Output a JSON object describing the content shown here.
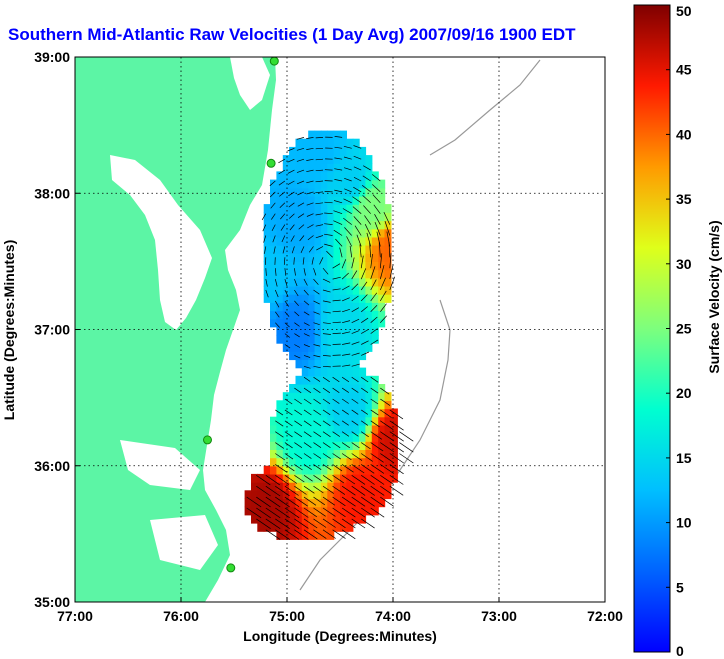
{
  "chart_data": {
    "type": "heatmap",
    "title": "Southern Mid-Atlantic Raw Velocities (1 Day Avg) 2007/09/16 1900 EDT",
    "xlabel": "Longitude (Degrees:Minutes)",
    "ylabel": "Latitude (Degrees:Minutes)",
    "colorbar_label": "Surface Velocity (cm/s)",
    "xlim": [
      -77,
      -72
    ],
    "ylim": [
      35,
      39
    ],
    "clim": [
      0,
      50
    ],
    "grid": "dotted",
    "x_ticks": [
      -77,
      -76,
      -75,
      -74,
      -73,
      -72
    ],
    "x_tick_labels": [
      "77:00",
      "76:00",
      "75:00",
      "74:00",
      "73:00",
      "72:00"
    ],
    "y_ticks": [
      35,
      36,
      37,
      38,
      39
    ],
    "y_tick_labels": [
      "35:00",
      "36:00",
      "37:00",
      "38:00",
      "39:00"
    ],
    "colorbar_ticks": [
      0,
      5,
      10,
      15,
      20,
      25,
      30,
      35,
      40,
      45,
      50
    ],
    "colorbar_tick_labels": [
      "0",
      "5",
      "10",
      "15",
      "20",
      "25",
      "30",
      "35",
      "40",
      "45",
      "50"
    ],
    "colors": {
      "land": "#5cf5a5",
      "water": "#ffffff",
      "station": "#33dd33",
      "arrow": "#000000"
    },
    "stations": [
      {
        "lon": -75.12,
        "lat": 38.97
      },
      {
        "lon": -75.15,
        "lat": 38.22
      },
      {
        "lon": -75.75,
        "lat": 36.19
      },
      {
        "lon": -75.53,
        "lat": 35.25
      }
    ],
    "velocity_field": [
      {
        "lon": -74.7,
        "lat": 38.3,
        "speed": 12
      },
      {
        "lon": -74.4,
        "lat": 38.1,
        "speed": 14
      },
      {
        "lon": -74.2,
        "lat": 37.9,
        "speed": 25
      },
      {
        "lon": -74.0,
        "lat": 37.6,
        "speed": 40
      },
      {
        "lon": -74.9,
        "lat": 37.8,
        "speed": 11
      },
      {
        "lon": -75.2,
        "lat": 37.4,
        "speed": 13
      },
      {
        "lon": -74.9,
        "lat": 37.0,
        "speed": 8
      },
      {
        "lon": -74.5,
        "lat": 37.0,
        "speed": 15
      },
      {
        "lon": -74.4,
        "lat": 36.4,
        "speed": 14
      },
      {
        "lon": -74.8,
        "lat": 36.2,
        "speed": 18
      },
      {
        "lon": -74.0,
        "lat": 36.2,
        "speed": 46
      },
      {
        "lon": -74.3,
        "lat": 35.8,
        "speed": 44
      },
      {
        "lon": -75.2,
        "lat": 35.7,
        "speed": 48
      }
    ]
  }
}
